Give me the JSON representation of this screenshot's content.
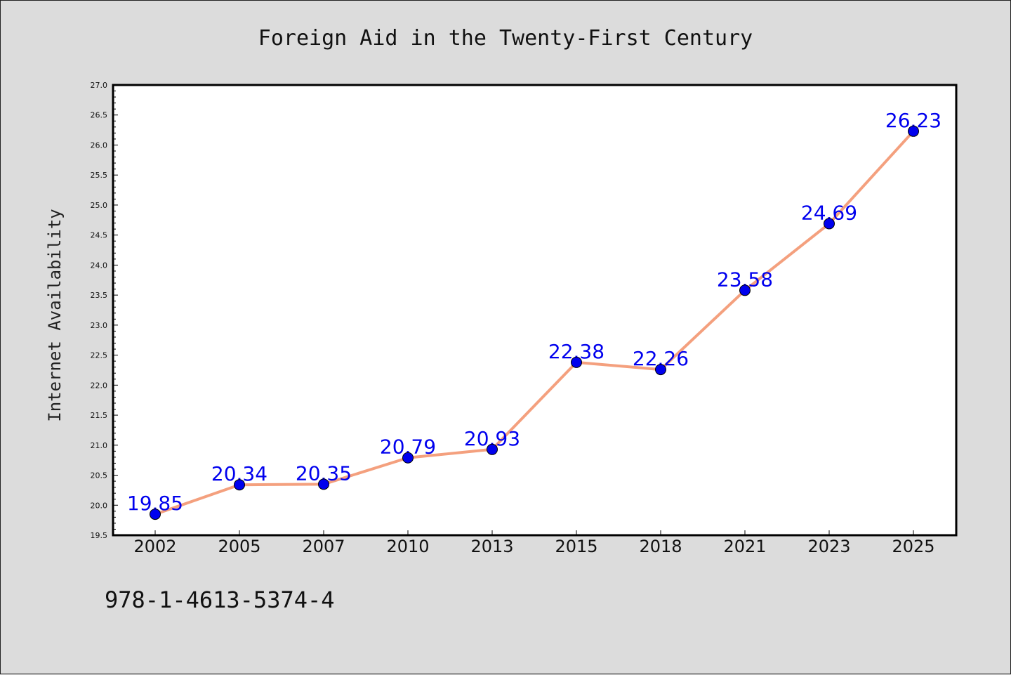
{
  "chart_data": {
    "type": "line",
    "title": "Foreign Aid in the Twenty-First Century",
    "xlabel": "",
    "ylabel": "Internet Availability",
    "categories": [
      "2002",
      "2005",
      "2007",
      "2010",
      "2013",
      "2015",
      "2018",
      "2021",
      "2023",
      "2025"
    ],
    "series": [
      {
        "values": [
          19.85,
          20.34,
          20.35,
          20.79,
          20.93,
          22.38,
          22.26,
          23.58,
          24.69,
          26.23
        ]
      }
    ],
    "data_labels": [
      "19.85",
      "20.34",
      "20.35",
      "20.79",
      "20.93",
      "22.38",
      "22.26",
      "23.58",
      "24.69",
      "26.23"
    ],
    "ylim": [
      19.5,
      27.0
    ],
    "yticks": [
      "19.5",
      "20.0",
      "20.5",
      "21.0",
      "21.5",
      "22.0",
      "22.5",
      "23.0",
      "23.5",
      "24.0",
      "24.5",
      "25.0",
      "25.5",
      "26.0",
      "26.5",
      "27.0"
    ],
    "grid": false,
    "legend": "none",
    "colors": {
      "line": "#f4a07e",
      "marker": "#0000ee",
      "label": "#0000ee",
      "plot_background": "#ffffff",
      "page_background": "#dcdcdc"
    }
  },
  "footer": {
    "isbn": "978-1-4613-5374-4"
  }
}
